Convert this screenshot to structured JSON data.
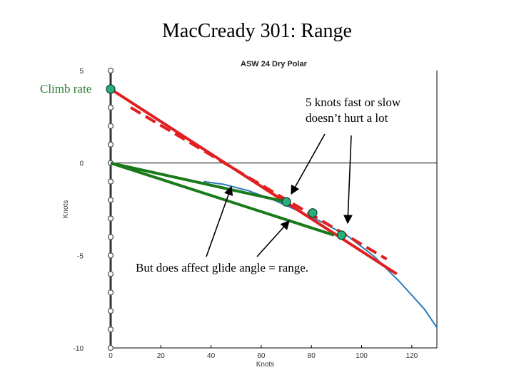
{
  "slide": {
    "title": "MacCready 301: Range",
    "climb_rate_label": "Climb rate",
    "fast_slow_line1": "5 knots fast or slow",
    "fast_slow_line2": "doesn’t hurt a lot",
    "glide_note": "But does affect glide angle = range."
  },
  "chart_data": {
    "type": "line",
    "title": "ASW 24 Dry Polar",
    "xlabel": "Knots",
    "ylabel": "Knots",
    "xlim": [
      0,
      130
    ],
    "ylim": [
      -10,
      5
    ],
    "x_ticks": [
      0,
      20,
      40,
      60,
      80,
      100,
      120
    ],
    "y_ticks": [
      5,
      0,
      -5,
      -10
    ],
    "x_tick_labels": [
      "0",
      "20",
      "40",
      "60",
      "80",
      "100",
      "120"
    ],
    "y_tick_labels": [
      "5",
      "0",
      "-5",
      "-10"
    ],
    "grid": false,
    "colors": {
      "polar": "#2b7bba",
      "tangent": "#e02020",
      "glide": "#1a7a1a",
      "marker": "#25b07a",
      "axis_markers": "#555555"
    },
    "series": [
      {
        "role": "polar",
        "x": [
          37,
          45,
          55,
          65,
          75,
          85,
          95,
          105,
          115,
          125,
          130
        ],
        "y": [
          -1.0,
          -1.15,
          -1.5,
          -2.0,
          -2.6,
          -3.25,
          -4.0,
          -5.05,
          -6.4,
          -7.9,
          -8.9
        ]
      },
      {
        "role": "tangent-solid",
        "x": [
          0,
          114
        ],
        "y": [
          4.0,
          -6.0
        ]
      },
      {
        "role": "tangent-dashed",
        "x": [
          8,
          110
        ],
        "y": [
          3.0,
          -5.2
        ]
      },
      {
        "role": "glide-line-1",
        "x": [
          0,
          70
        ],
        "y": [
          0,
          -2.1
        ]
      },
      {
        "role": "glide-line-2",
        "x": [
          0,
          89
        ],
        "y": [
          0,
          -3.9
        ]
      }
    ],
    "markers": [
      {
        "x": 0,
        "y": 4.0
      },
      {
        "x": 70,
        "y": -2.1
      },
      {
        "x": 80.5,
        "y": -2.7
      },
      {
        "x": 92,
        "y": -3.9
      }
    ],
    "axis_marker_y": [
      5,
      4,
      3,
      2,
      1,
      0,
      -1,
      -2,
      -3,
      -4,
      -5,
      -6,
      -7,
      -8,
      -9,
      -10
    ]
  }
}
